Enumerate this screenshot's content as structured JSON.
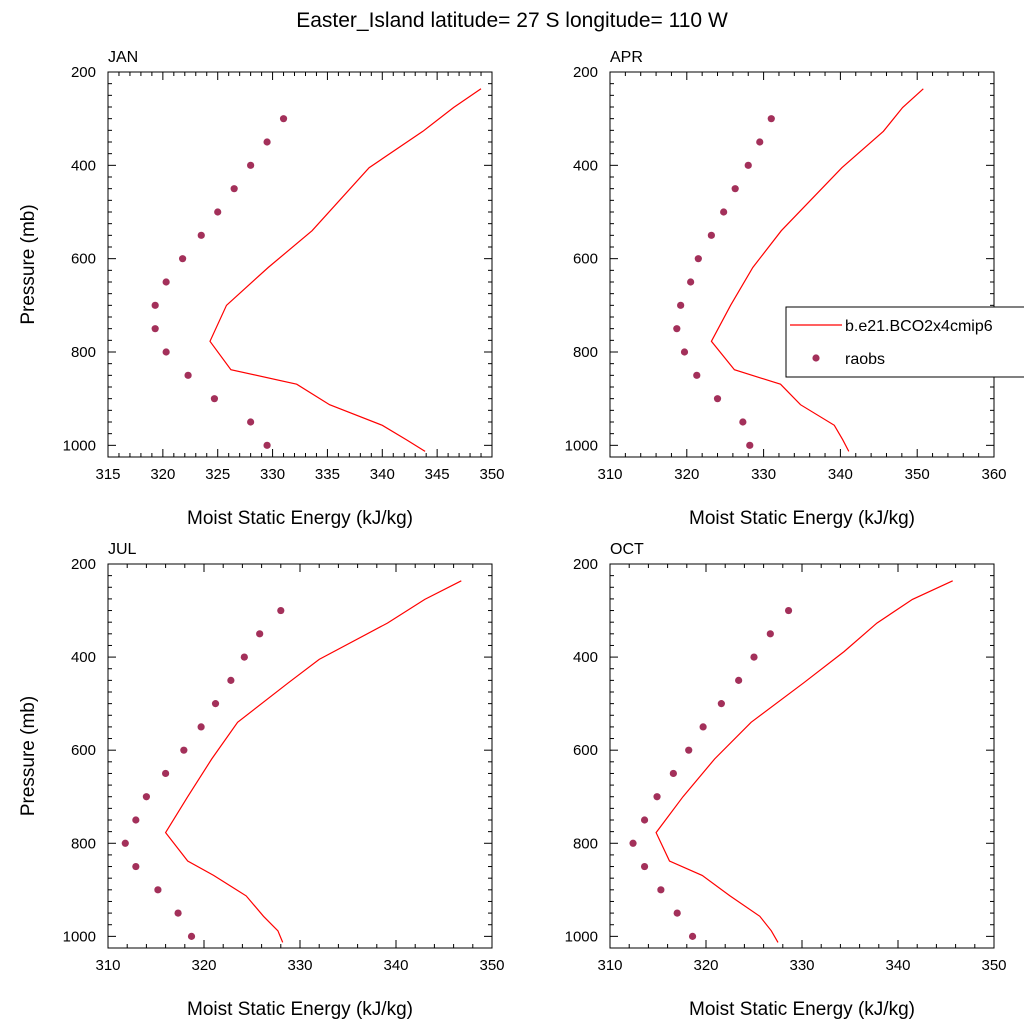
{
  "figure": {
    "title": "Easter_Island  latitude= 27 S longitude= 110 W",
    "legend": {
      "placement": "right, outside APR panel",
      "entries": [
        {
          "label": "b.e21.BCO2x4cmip6",
          "style": "line",
          "color": "#ff0000"
        },
        {
          "label": "raobs",
          "style": "marker",
          "color": "#a3305a"
        }
      ]
    }
  },
  "chart_data": [
    {
      "type": "line",
      "title": "JAN",
      "xlabel": "Moist Static Energy (kJ/kg)",
      "ylabel": "Pressure (mb)",
      "xlim": [
        315,
        350
      ],
      "ylim": [
        1025,
        200
      ],
      "xticks": [
        315,
        320,
        325,
        330,
        335,
        340,
        345,
        350
      ],
      "yticks": [
        200,
        400,
        600,
        800,
        1000
      ],
      "series": [
        {
          "name": "b.e21.BCO2x4cmip6",
          "style": "line",
          "color": "#ff0000",
          "x": [
            343.9,
            342.2,
            340.0,
            335.2,
            332.2,
            326.2,
            324.3,
            325.8,
            329.6,
            333.6,
            338.8,
            343.7,
            346.5,
            349.0
          ],
          "y": [
            1013,
            988,
            957,
            913,
            869,
            838,
            777,
            700,
            619,
            540,
            405,
            327,
            276,
            236
          ]
        },
        {
          "name": "raobs",
          "style": "marker",
          "color": "#a3305a",
          "x": [
            329.5,
            328.0,
            324.7,
            322.3,
            320.3,
            319.3,
            319.3,
            320.3,
            321.8,
            323.5,
            325.0,
            326.5,
            328.0,
            329.5,
            331.0
          ],
          "y": [
            1000,
            950,
            900,
            850,
            800,
            750,
            700,
            650,
            600,
            550,
            500,
            450,
            400,
            350,
            300
          ]
        }
      ]
    },
    {
      "type": "line",
      "title": "APR",
      "xlabel": "Moist Static Energy (kJ/kg)",
      "ylabel": "",
      "xlim": [
        310,
        360
      ],
      "ylim": [
        1025,
        200
      ],
      "xticks": [
        310,
        320,
        330,
        340,
        350,
        360
      ],
      "yticks": [
        200,
        400,
        600,
        800,
        1000
      ],
      "series": [
        {
          "name": "b.e21.BCO2x4cmip6",
          "style": "line",
          "color": "#ff0000",
          "x": [
            341.1,
            340.3,
            339.2,
            334.8,
            332.2,
            326.2,
            323.2,
            325.7,
            328.6,
            332.3,
            340.2,
            345.6,
            348.1,
            350.8
          ],
          "y": [
            1013,
            988,
            957,
            913,
            869,
            838,
            777,
            700,
            619,
            540,
            405,
            327,
            276,
            236
          ]
        },
        {
          "name": "raobs",
          "style": "marker",
          "color": "#a3305a",
          "x": [
            328.2,
            327.3,
            324.0,
            321.3,
            319.7,
            318.7,
            319.2,
            320.5,
            321.5,
            323.2,
            324.8,
            326.3,
            328.0,
            329.5,
            331.0
          ],
          "y": [
            1000,
            950,
            900,
            850,
            800,
            750,
            700,
            650,
            600,
            550,
            500,
            450,
            400,
            350,
            300
          ]
        }
      ]
    },
    {
      "type": "line",
      "title": "JUL",
      "xlabel": "Moist Static Energy (kJ/kg)",
      "ylabel": "Pressure (mb)",
      "xlim": [
        310,
        350
      ],
      "ylim": [
        1025,
        200
      ],
      "xticks": [
        310,
        320,
        330,
        340,
        350
      ],
      "yticks": [
        200,
        400,
        600,
        800,
        1000
      ],
      "series": [
        {
          "name": "b.e21.BCO2x4cmip6",
          "style": "line",
          "color": "#ff0000",
          "x": [
            328.2,
            327.7,
            326.2,
            324.4,
            321.0,
            318.3,
            316.0,
            318.3,
            320.8,
            323.5,
            328.8,
            332.0,
            339.1,
            343.0,
            346.8
          ],
          "y": [
            1013,
            988,
            957,
            913,
            869,
            838,
            777,
            700,
            619,
            540,
            455,
            405,
            327,
            276,
            236
          ]
        },
        {
          "name": "raobs",
          "style": "marker",
          "color": "#a3305a",
          "x": [
            318.7,
            317.3,
            315.2,
            312.9,
            311.8,
            312.9,
            314.0,
            316.0,
            317.9,
            319.7,
            321.2,
            322.8,
            324.2,
            325.8,
            328.0
          ],
          "y": [
            1000,
            950,
            900,
            850,
            800,
            750,
            700,
            650,
            600,
            550,
            500,
            450,
            400,
            350,
            300
          ]
        }
      ]
    },
    {
      "type": "line",
      "title": "OCT",
      "xlabel": "Moist Static Energy (kJ/kg)",
      "ylabel": "",
      "xlim": [
        310,
        350
      ],
      "ylim": [
        1025,
        200
      ],
      "xticks": [
        310,
        320,
        330,
        340,
        350
      ],
      "yticks": [
        200,
        400,
        600,
        800,
        1000
      ],
      "series": [
        {
          "name": "b.e21.BCO2x4cmip6",
          "style": "line",
          "color": "#ff0000",
          "x": [
            327.5,
            326.8,
            325.6,
            322.5,
            319.6,
            316.2,
            314.8,
            317.6,
            320.9,
            324.7,
            330.2,
            334.4,
            337.8,
            341.5,
            345.7
          ],
          "y": [
            1013,
            988,
            957,
            913,
            869,
            838,
            777,
            700,
            619,
            540,
            455,
            388,
            327,
            276,
            236
          ]
        },
        {
          "name": "raobs",
          "style": "marker",
          "color": "#a3305a",
          "x": [
            318.6,
            317.0,
            315.3,
            313.6,
            312.4,
            313.6,
            314.9,
            316.6,
            318.2,
            319.7,
            321.6,
            323.4,
            325.0,
            326.7,
            328.6
          ],
          "y": [
            1000,
            950,
            900,
            850,
            800,
            750,
            700,
            650,
            600,
            550,
            500,
            450,
            400,
            350,
            300
          ]
        }
      ]
    }
  ]
}
